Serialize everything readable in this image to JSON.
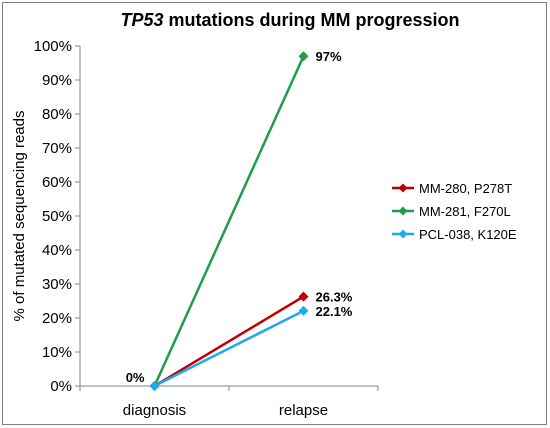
{
  "chart_data": {
    "type": "line",
    "title_italic": "TP53",
    "title_rest": " mutations during MM progression",
    "ylabel": "% of mutated sequencing reads",
    "categories": [
      "diagnosis",
      "relapse"
    ],
    "ylim": [
      0,
      100
    ],
    "yticks": [
      "0%",
      "10%",
      "20%",
      "30%",
      "40%",
      "50%",
      "60%",
      "70%",
      "80%",
      "90%",
      "100%"
    ],
    "grid": false,
    "legend_position": "right",
    "series": [
      {
        "name": "MM-280, P278T",
        "values": [
          0,
          26.3
        ],
        "color": "#c00000",
        "marker": "diamond",
        "labels": [
          "",
          "26.3%"
        ]
      },
      {
        "name": "MM-281, F270L",
        "values": [
          0,
          97
        ],
        "color": "#1e9e4a",
        "marker": "diamond",
        "labels": [
          "",
          "97%"
        ]
      },
      {
        "name": "PCL-038, K120E",
        "values": [
          0,
          22.1
        ],
        "color": "#1eaaf1",
        "marker": "diamond",
        "labels": [
          "0%",
          "22.1%"
        ]
      }
    ]
  }
}
